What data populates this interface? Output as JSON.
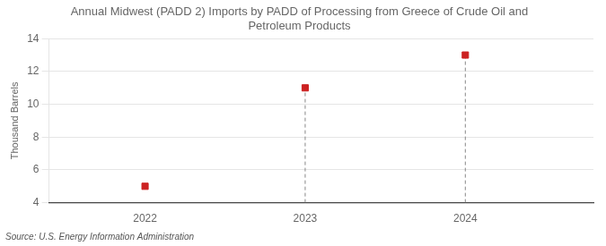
{
  "chart_data": {
    "type": "scatter",
    "title": "Annual Midwest (PADD 2) Imports by PADD of Processing from Greece of Crude Oil and\nPetroleum Products",
    "ylabel": "Thousand Barrels",
    "source": "Source: U.S. Energy Information Administration",
    "x": [
      2022,
      2023,
      2024
    ],
    "values": [
      5,
      11,
      13
    ],
    "color": "#cc2222",
    "marker": "square",
    "xlim": [
      2021.4,
      2024.8
    ],
    "xticks": [
      2022,
      2023,
      2024
    ],
    "ylim": [
      4,
      14
    ],
    "yticks": [
      4,
      6,
      8,
      10,
      12,
      14
    ],
    "grid": true
  }
}
